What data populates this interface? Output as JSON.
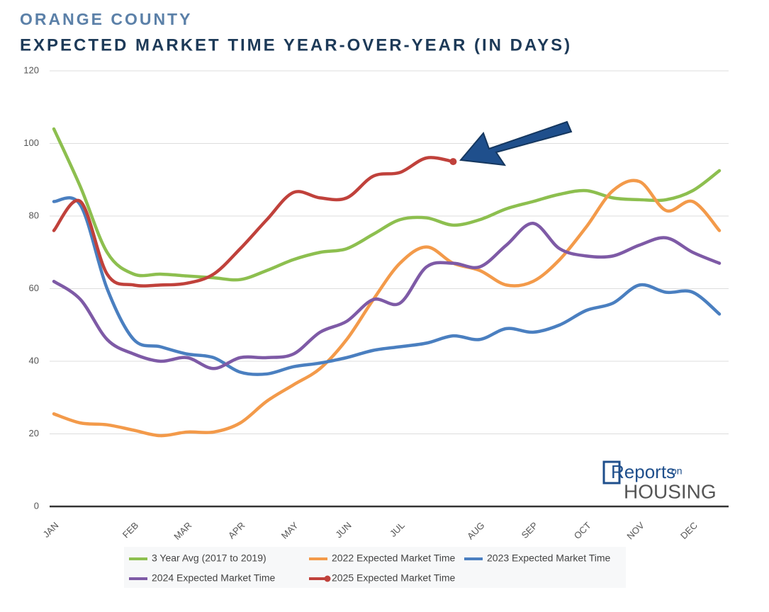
{
  "chart_data": {
    "type": "line",
    "supertitle": "ORANGE COUNTY",
    "title": "EXPECTED MARKET TIME YEAR-OVER-YEAR (IN DAYS)",
    "logo": {
      "top": "Reports",
      "on": "on",
      "bottom": "HOUSING"
    },
    "categories": [
      "JAN",
      null,
      null,
      "FEB",
      null,
      "MAR",
      null,
      "APR",
      null,
      "MAY",
      null,
      "JUN",
      null,
      "JUL",
      null,
      null,
      "AUG",
      null,
      "SEP",
      null,
      "OCT",
      null,
      "NOV",
      null,
      "DEC",
      null
    ],
    "series": [
      {
        "name": "3 Year Avg (2017 to 2019)",
        "color": "#8dbf4f",
        "values": [
          104,
          88,
          70,
          64,
          64,
          63.5,
          63,
          62.5,
          65,
          68,
          70,
          71,
          75,
          79,
          79.5,
          77.5,
          79,
          82,
          84,
          86,
          87,
          85,
          84.5,
          84.5,
          87,
          92.5
        ]
      },
      {
        "name": "2022 Expected Market Time",
        "color": "#f39a4a",
        "values": [
          25.5,
          23,
          22.5,
          21,
          19.5,
          20.5,
          20.5,
          23,
          29,
          33.5,
          38,
          46,
          57,
          67,
          71.5,
          67,
          65,
          61,
          62,
          68,
          77,
          87,
          89.5,
          81.5,
          84,
          76
        ]
      },
      {
        "name": "2023 Expected Market Time",
        "color": "#4a7fc0",
        "values": [
          84,
          83,
          60,
          46,
          44,
          42,
          41,
          37,
          36.5,
          38.5,
          39.5,
          41,
          43,
          44,
          45,
          47,
          46,
          49,
          48,
          50,
          54,
          56,
          61,
          59,
          59,
          53
        ]
      },
      {
        "name": "2024 Expected Market Time",
        "color": "#7e5aa6",
        "values": [
          62,
          57,
          46,
          42,
          40,
          41,
          38,
          41,
          41,
          42,
          48,
          51,
          57,
          56,
          66,
          67,
          66,
          72,
          78,
          71,
          69,
          69,
          72,
          74,
          70,
          67
        ]
      },
      {
        "name": "2025 Expected Market Time",
        "color": "#c0413b",
        "values": [
          76,
          84,
          64,
          61,
          61,
          61.5,
          64,
          71,
          79,
          86.5,
          85,
          85,
          91,
          92,
          96,
          95,
          null,
          null,
          null,
          null,
          null,
          null,
          null,
          null,
          null,
          null
        ],
        "end_marker": true
      }
    ],
    "ylim": [
      0,
      120
    ],
    "yticks": [
      0,
      20,
      40,
      60,
      80,
      100,
      120
    ],
    "grid": true
  }
}
